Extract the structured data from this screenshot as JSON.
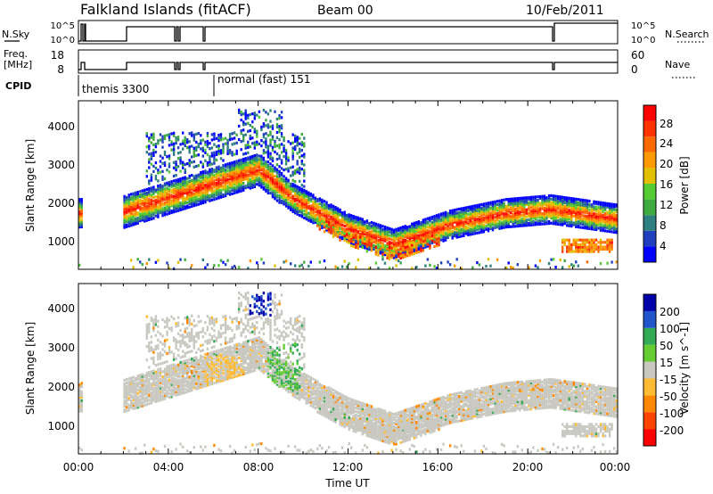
{
  "header": {
    "title": "Falkland Islands (fitACF)",
    "beam": "Beam 00",
    "date": "10/Feb/2011"
  },
  "top_panels": {
    "nsky_label": "N.Sky",
    "nsky_ticks": [
      "10^5",
      "10^0"
    ],
    "nsearch_label": "N.Search",
    "nsearch_ticks": [
      "10^5",
      "10^0"
    ],
    "freq_label": "Freq.",
    "freq_unit": "[MHz]",
    "freq_ticks": [
      "18",
      "8"
    ],
    "nave_label": "Nave",
    "nave_ticks": [
      "60",
      "0"
    ],
    "cpid_label": "CPID",
    "cpid_segments": [
      {
        "start_hour": 0.0,
        "label": "themis 3300"
      },
      {
        "start_hour": 6.0,
        "label": "normal (fast) 151"
      }
    ]
  },
  "chart_data": [
    {
      "type": "heatmap",
      "name": "power",
      "ylabel": "Slant Range [km]",
      "ylim": [
        200,
        4600
      ],
      "y_ticks": [
        "1000",
        "2000",
        "3000",
        "4000"
      ],
      "x_ticks": [
        "00:00",
        "04:00",
        "08:00",
        "12:00",
        "16:00",
        "20:00",
        "00:00"
      ],
      "xlim_hours": [
        0,
        24
      ],
      "colorbar": {
        "label": "Power [dB]",
        "ticks": [
          "4",
          "8",
          "12",
          "16",
          "20",
          "24",
          "28"
        ],
        "range": [
          0,
          30
        ],
        "colors": [
          "#0000ff",
          "#1f3fbf",
          "#2e7f7f",
          "#3faa3f",
          "#55cc33",
          "#e0c000",
          "#ff9900",
          "#ff6a00",
          "#ff3300",
          "#ff0000"
        ]
      },
      "echo_band_center_km": [
        {
          "hour": 0.0,
          "km": 1700
        },
        {
          "hour": 2.0,
          "km": 1750
        },
        {
          "hour": 5.0,
          "km": 2300
        },
        {
          "hour": 8.0,
          "km": 2850
        },
        {
          "hour": 9.5,
          "km": 2100
        },
        {
          "hour": 12.0,
          "km": 1300
        },
        {
          "hour": 14.0,
          "km": 900
        },
        {
          "hour": 16.5,
          "km": 1400
        },
        {
          "hour": 19.0,
          "km": 1700
        },
        {
          "hour": 21.0,
          "km": 1800
        },
        {
          "hour": 24.0,
          "km": 1550
        }
      ]
    },
    {
      "type": "heatmap",
      "name": "velocity",
      "ylabel": "Slant Range [km]",
      "ylim": [
        200,
        4600
      ],
      "y_ticks": [
        "1000",
        "2000",
        "3000",
        "4000"
      ],
      "x_ticks": [
        "00:00",
        "04:00",
        "08:00",
        "12:00",
        "16:00",
        "20:00",
        "00:00"
      ],
      "xlabel": "Time UT",
      "xlim_hours": [
        0,
        24
      ],
      "colorbar": {
        "label": "Velocity [m s^-1]",
        "ticks": [
          "200",
          "100",
          "50",
          "15",
          "-15",
          "-50",
          "-100",
          "-200"
        ],
        "range": [
          -250,
          250
        ],
        "colors": [
          "#0000aa",
          "#2255cc",
          "#33aa55",
          "#66cc33",
          "#c8c8c0",
          "#ffbb33",
          "#ff8800",
          "#ff4400",
          "#ff0000"
        ]
      }
    }
  ]
}
